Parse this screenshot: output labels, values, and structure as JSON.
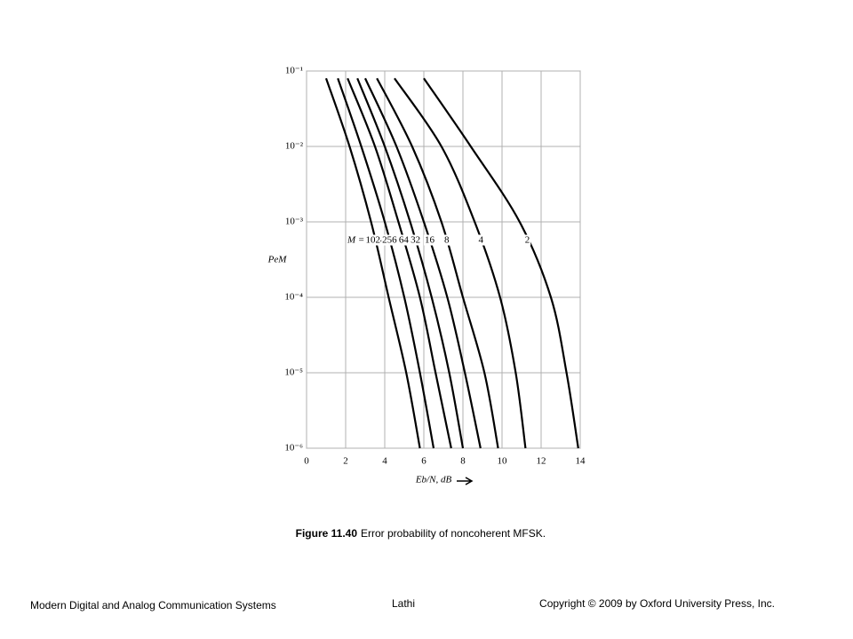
{
  "chart_data": {
    "type": "line",
    "y_label": "PeM",
    "x_label": "Eb/N, dB",
    "label_prefix": "M =",
    "log_y": true,
    "grid": true,
    "xlim": [
      0,
      14
    ],
    "xticks": [
      0,
      2,
      4,
      6,
      8,
      10,
      12,
      14
    ],
    "ylim": [
      1e-06,
      0.1
    ],
    "yticks": [
      {
        "value": 1e-06,
        "label": "10⁻⁶"
      },
      {
        "value": 1e-05,
        "label": "10⁻⁵"
      },
      {
        "value": 0.0001,
        "label": "10⁻⁴"
      },
      {
        "value": 0.001,
        "label": "10⁻³"
      },
      {
        "value": 0.01,
        "label": "10⁻²"
      },
      {
        "value": 0.1,
        "label": "10⁻¹"
      }
    ],
    "series": [
      {
        "name": "1024",
        "color": "#000000",
        "x": [
          1.0,
          2.2,
          3.3,
          4.2,
          5.1,
          5.8
        ],
        "values": [
          0.08,
          0.01,
          0.001,
          0.0001,
          1e-05,
          1e-06
        ]
      },
      {
        "name": "256",
        "color": "#000000",
        "x": [
          1.6,
          2.8,
          4.0,
          5.0,
          5.8,
          6.5
        ],
        "values": [
          0.08,
          0.01,
          0.001,
          0.0001,
          1e-05,
          1e-06
        ]
      },
      {
        "name": "64",
        "color": "#000000",
        "x": [
          2.1,
          3.5,
          4.7,
          5.8,
          6.6,
          7.4
        ],
        "values": [
          0.08,
          0.01,
          0.001,
          0.0001,
          1e-05,
          1e-06
        ]
      },
      {
        "name": "32",
        "color": "#000000",
        "x": [
          2.6,
          4.0,
          5.3,
          6.4,
          7.3,
          8.0
        ],
        "values": [
          0.08,
          0.01,
          0.001,
          0.0001,
          1e-05,
          1e-06
        ]
      },
      {
        "name": "16",
        "color": "#000000",
        "x": [
          3.0,
          4.6,
          6.0,
          7.2,
          8.1,
          8.9
        ],
        "values": [
          0.08,
          0.01,
          0.001,
          0.0001,
          1e-05,
          1e-06
        ]
      },
      {
        "name": "8",
        "color": "#000000",
        "x": [
          3.6,
          5.4,
          6.9,
          8.0,
          9.1,
          9.8
        ],
        "values": [
          0.08,
          0.01,
          0.001,
          0.0001,
          1e-05,
          1e-06
        ]
      },
      {
        "name": "4",
        "color": "#000000",
        "x": [
          4.5,
          6.9,
          8.6,
          9.9,
          10.7,
          11.2
        ],
        "values": [
          0.08,
          0.01,
          0.001,
          0.0001,
          1e-05,
          1e-06
        ]
      },
      {
        "name": "2",
        "color": "#000000",
        "x": [
          6.0,
          8.4,
          10.9,
          12.5,
          13.3,
          13.9
        ],
        "values": [
          0.08,
          0.01,
          0.001,
          0.0001,
          1e-05,
          1e-06
        ]
      }
    ]
  },
  "caption": {
    "label": "Figure 11.40",
    "text": "Error probability of noncoherent MFSK."
  },
  "footer": {
    "left": "Modern Digital and Analog Communication Systems",
    "center": "Lathi",
    "right": "Copyright © 2009 by Oxford University Press, Inc."
  }
}
